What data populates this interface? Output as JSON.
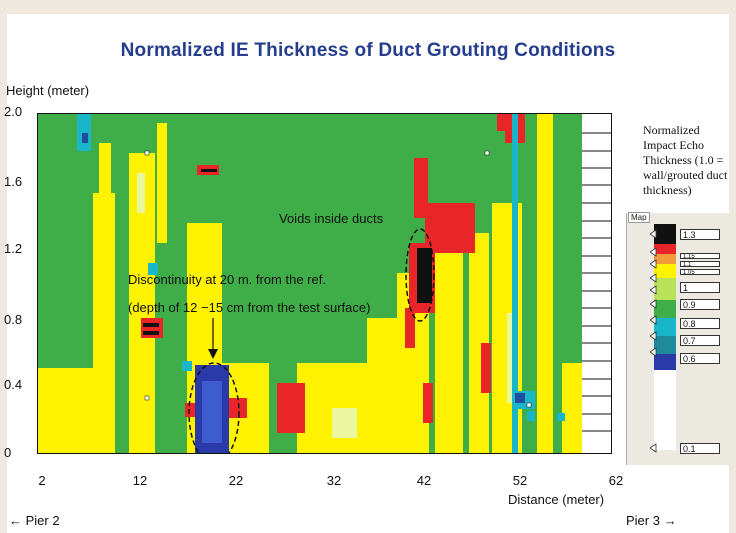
{
  "chart_data": {
    "type": "heatmap",
    "title": "Normalized IE Thickness of Duct Grouting Conditions",
    "ylabel": "Height (meter)",
    "xlabel": "Distance (meter)",
    "x_ticks": [
      "2",
      "12",
      "22",
      "32",
      "42",
      "52",
      "62"
    ],
    "y_ticks": [
      "2.0",
      "1.6",
      "1.2",
      "0.8",
      "0.4",
      "0"
    ],
    "xlim": [
      0,
      62
    ],
    "ylim": [
      0,
      2.0
    ],
    "legend_title": "Normalized Impact Echo Thickness (1.0 = wall/grouted duct thickness)",
    "legend_tab": "Map",
    "colorbar": [
      {
        "label": "1.3",
        "color": "#111111"
      },
      {
        "label": "1.15",
        "color": "#e8262a"
      },
      {
        "label": "1.1",
        "color": "#f39a3c"
      },
      {
        "label": "1.05",
        "color": "#fff200"
      },
      {
        "label": "1",
        "color": "#b9e15a"
      },
      {
        "label": "0.9",
        "color": "#3fae49"
      },
      {
        "label": "0.8",
        "color": "#19b5c8"
      },
      {
        "label": "0.7",
        "color": "#1f8a9c"
      },
      {
        "label": "0.6",
        "color": "#2a3aa8"
      },
      {
        "label": "0.1",
        "color": "#ffffff"
      }
    ],
    "annotations": [
      {
        "text": "Voids inside ducts"
      },
      {
        "text": "Discontinuity at 20 m. from the ref."
      },
      {
        "text": "(depth of 12 −15 cm from the test surface)"
      }
    ],
    "pier_left": "Pier 2",
    "pier_right": "Pier 3"
  },
  "colors": {
    "title": "#243d8c",
    "green": "#3fae49",
    "yellow": "#fff200",
    "red": "#e8262a",
    "blue": "#2a3aa8",
    "cyan": "#19b5c8",
    "black": "#111111",
    "white": "#ffffff",
    "pale": "#e9f7b0"
  }
}
